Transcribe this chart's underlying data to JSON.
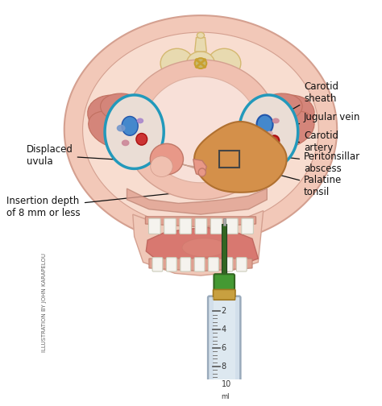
{
  "bg_color": "#ffffff",
  "labels": {
    "carotid_sheath": "Carotid\nsheath",
    "jugular_vein": "Jugular vein",
    "carotid_artery": "Carotid\nartery",
    "peritonsillar": "Peritonsillar\nabscess",
    "palatine": "Palatine\ntonsil",
    "displaced_uvula": "Displaced\nuvula",
    "insertion_depth": "Insertion depth\nof 8 mm or less"
  },
  "credit": "ILLUSTRATION BY JOHN KARAPELOU",
  "skin_outer": "#f2c8b8",
  "skin_mid": "#ebb8a8",
  "skin_inner": "#f8ddd0",
  "muscle_col": "#d4857a",
  "muscle_dark": "#c07060",
  "bone_col": "#e8dab0",
  "bone_dark": "#d4b870",
  "bone_gold": "#c8a030",
  "pharynx_col": "#f0c0b0",
  "tonsil_col": "#e89888",
  "abscess_col": "#d4904a",
  "tongue_col": "#d87870",
  "tooth_col": "#f5f3ee",
  "gum_col": "#e0a090",
  "blue_vein": "#4488cc",
  "blue_dark": "#2255aa",
  "red_artery": "#cc3333",
  "red_dark": "#aa1111",
  "carotid_cyan": "#2299bb",
  "needle_green": "#336622",
  "needle_bright": "#449933",
  "gold_ring": "#c8a040",
  "syringe_body": "#dde8f0",
  "syringe_edge": "#99aabb",
  "plunger_col": "#b0c8dd",
  "arrow_blue": "#5599cc",
  "annotation_color": "#111111"
}
